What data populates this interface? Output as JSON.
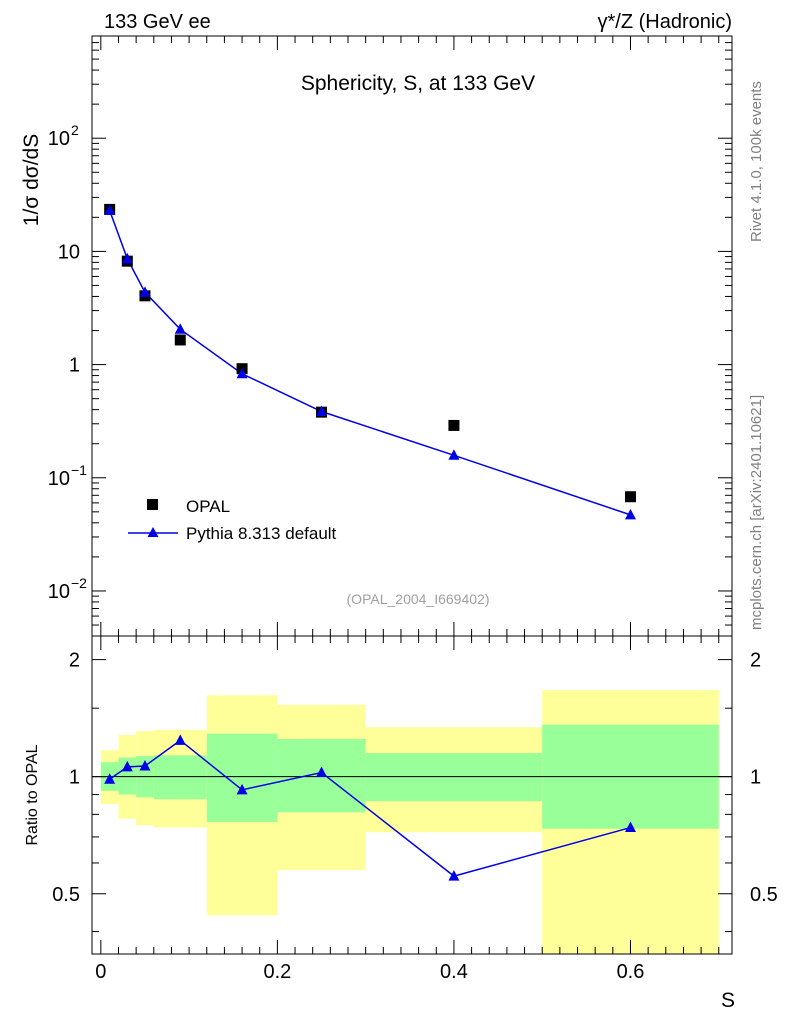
{
  "header": {
    "left": "133 GeV ee",
    "right": "γ*/Z (Hadronic)"
  },
  "side_text": {
    "rivet": "Rivet 4.1.0,  100k events",
    "mcplots": "mcplots.cern.ch [arXiv:2401.10621]"
  },
  "chart_data": {
    "type": "line",
    "title": "Sphericity, S, at 133 GeV",
    "ylabel_main": "1/σ  dσ/dS",
    "ylabel_ratio": "Ratio to OPAL",
    "xlabel": "S",
    "analysis_tag": "(OPAL_2004_I669402)",
    "xlim": [
      -0.01,
      0.715
    ],
    "ylim_main": [
      0.004,
      800
    ],
    "ylim_ratio": [
      0.35,
      2.3
    ],
    "y_scale_main": "log",
    "y_scale_ratio": "log",
    "x_ticks": [
      0,
      0.2,
      0.4,
      0.6
    ],
    "x_tick_labels": [
      "0",
      "0.2",
      "0.4",
      "0.6"
    ],
    "main_y_ticks": [
      {
        "value": 0.01,
        "base": "10",
        "exp": "−2"
      },
      {
        "value": 0.1,
        "base": "10",
        "exp": "−1"
      },
      {
        "value": 1,
        "base": "1",
        "exp": ""
      },
      {
        "value": 10,
        "base": "10",
        "exp": ""
      },
      {
        "value": 100,
        "base": "10",
        "exp": "2"
      }
    ],
    "ratio_y_ticks": [
      {
        "value": 0.5,
        "label": "0.5"
      },
      {
        "value": 1,
        "label": "1"
      },
      {
        "value": 2,
        "label": "2"
      }
    ],
    "legend_position": "lower-left",
    "series": [
      {
        "name": "OPAL",
        "marker": "square",
        "color": "#000000",
        "x": [
          0.01,
          0.03,
          0.05,
          0.09,
          0.16,
          0.25,
          0.4,
          0.6
        ],
        "values": [
          23.5,
          8.2,
          4.05,
          1.65,
          0.92,
          0.38,
          0.29,
          0.068
        ]
      },
      {
        "name": "Pythia 8.313 default",
        "marker": "triangle",
        "color": "#0000e6",
        "x": [
          0.01,
          0.03,
          0.05,
          0.09,
          0.16,
          0.25,
          0.4,
          0.6
        ],
        "values": [
          23.0,
          8.6,
          4.35,
          2.05,
          0.83,
          0.385,
          0.158,
          0.047
        ]
      }
    ],
    "ratio": {
      "reference_value": 1,
      "series_name": "Pythia 8.313 default",
      "x": [
        0.01,
        0.03,
        0.05,
        0.09,
        0.16,
        0.25,
        0.4,
        0.6
      ],
      "values": [
        0.985,
        1.06,
        1.065,
        1.24,
        0.925,
        1.025,
        0.555,
        0.74
      ],
      "bins": [
        {
          "lo": 0.0,
          "hi": 0.02,
          "inner": [
            0.92,
            1.09
          ],
          "outer": [
            0.85,
            1.17
          ]
        },
        {
          "lo": 0.02,
          "hi": 0.04,
          "inner": [
            0.9,
            1.12
          ],
          "outer": [
            0.78,
            1.28
          ]
        },
        {
          "lo": 0.04,
          "hi": 0.06,
          "inner": [
            0.885,
            1.13
          ],
          "outer": [
            0.75,
            1.31
          ]
        },
        {
          "lo": 0.06,
          "hi": 0.12,
          "inner": [
            0.875,
            1.135
          ],
          "outer": [
            0.74,
            1.32
          ]
        },
        {
          "lo": 0.12,
          "hi": 0.2,
          "inner": [
            0.765,
            1.29
          ],
          "outer": [
            0.44,
            1.62
          ]
        },
        {
          "lo": 0.2,
          "hi": 0.3,
          "inner": [
            0.81,
            1.25
          ],
          "outer": [
            0.575,
            1.53
          ]
        },
        {
          "lo": 0.3,
          "hi": 0.5,
          "inner": [
            0.865,
            1.15
          ],
          "outer": [
            0.72,
            1.34
          ]
        },
        {
          "lo": 0.5,
          "hi": 0.7,
          "inner": [
            0.735,
            1.36
          ],
          "outer": [
            0.34,
            1.67
          ]
        }
      ]
    }
  }
}
